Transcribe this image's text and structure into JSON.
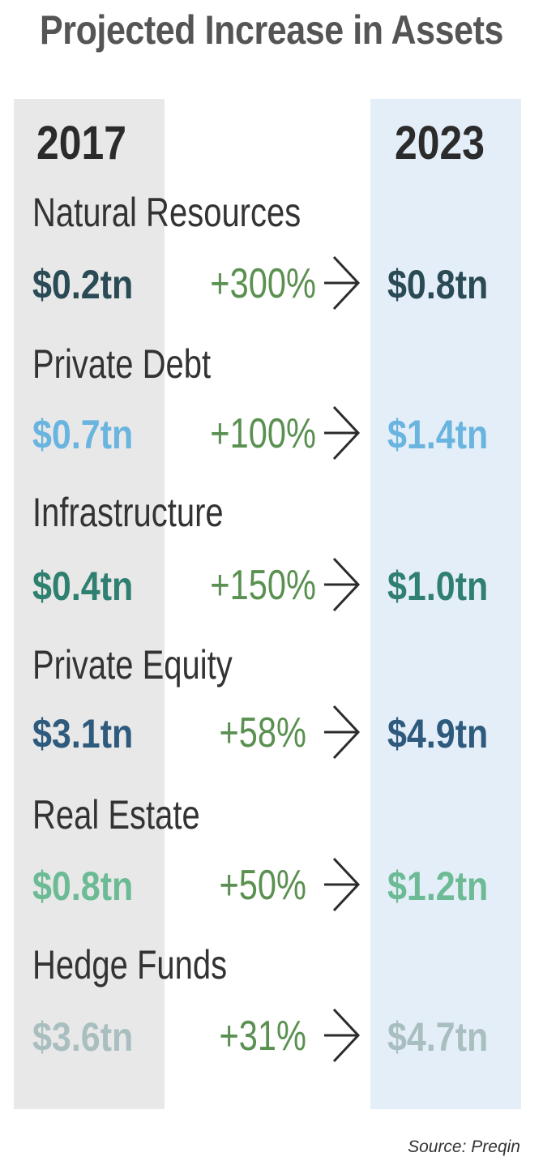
{
  "title": "Projected Increase in Assets",
  "source": "Source: Preqin",
  "chart_data": {
    "type": "table",
    "title": "Projected Increase in Assets",
    "columns": [
      "2017",
      "2023"
    ],
    "rows": [
      {
        "category": "Natural Resources",
        "value_2017": "$0.2tn",
        "change": "+300%",
        "value_2023": "$0.8tn",
        "color": "#2a4a55"
      },
      {
        "category": "Private Debt",
        "value_2017": "$0.7tn",
        "change": "+100%",
        "value_2023": "$1.4tn",
        "color": "#6ab4e0"
      },
      {
        "category": "Infrastructure",
        "value_2017": "$0.4tn",
        "change": "+150%",
        "value_2023": "$1.0tn",
        "color": "#2f8070"
      },
      {
        "category": "Private Equity",
        "value_2017": "$3.1tn",
        "change": "+58%",
        "value_2023": "$4.9tn",
        "color": "#2e5a7e"
      },
      {
        "category": "Real Estate",
        "value_2017": "$0.8tn",
        "change": "+50%",
        "value_2023": "$1.2tn",
        "color": "#6cbb95"
      },
      {
        "category": "Hedge Funds",
        "value_2017": "$3.6tn",
        "change": "+31%",
        "value_2023": "$4.7tn",
        "color": "#a9bfbf"
      }
    ],
    "change_color": "#5a9050"
  }
}
